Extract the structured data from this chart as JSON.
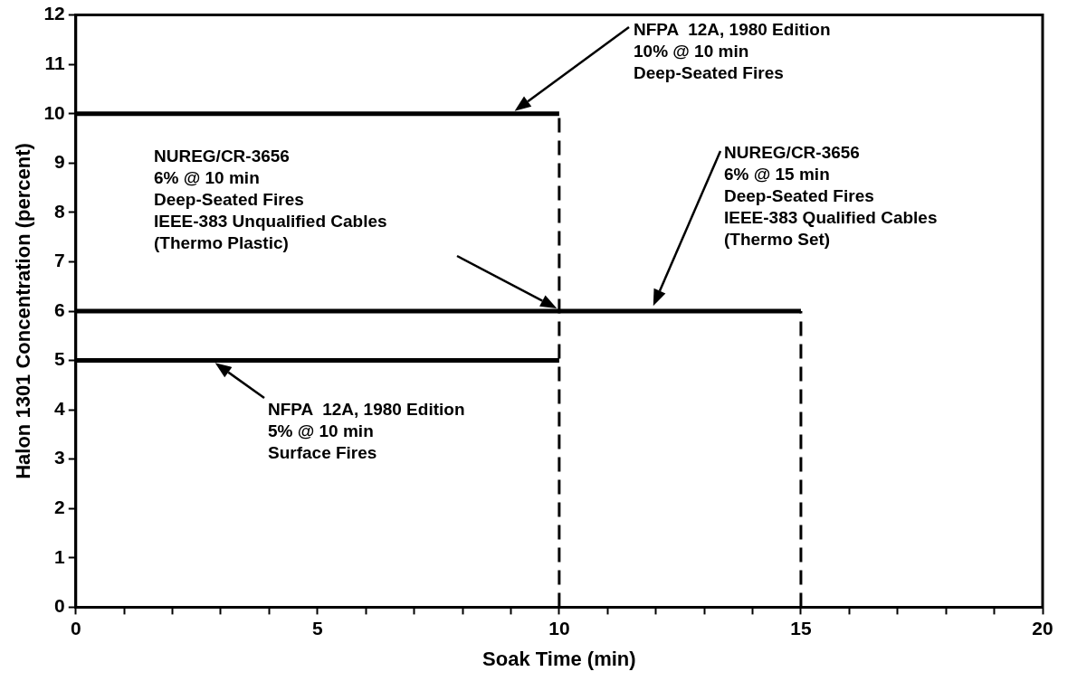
{
  "chart_data": {
    "type": "line",
    "xlabel": "Soak Time (min)",
    "ylabel": "Halon 1301 Concentration (percent)",
    "xlim": [
      0,
      20
    ],
    "ylim": [
      0,
      12
    ],
    "xticks": [
      0,
      {
        "value": 1,
        "label": null
      },
      {
        "value": 2,
        "label": null
      },
      {
        "value": 3,
        "label": null
      },
      {
        "value": 4,
        "label": null
      },
      5,
      {
        "value": 6,
        "label": null
      },
      {
        "value": 7,
        "label": null
      },
      {
        "value": 8,
        "label": null
      },
      {
        "value": 9,
        "label": null
      },
      10,
      {
        "value": 11,
        "label": null
      },
      {
        "value": 12,
        "label": null
      },
      {
        "value": 13,
        "label": null
      },
      {
        "value": 14,
        "label": null
      },
      15,
      {
        "value": 16,
        "label": null
      },
      {
        "value": 17,
        "label": null
      },
      {
        "value": 18,
        "label": null
      },
      {
        "value": 19,
        "label": null
      },
      20
    ],
    "yticks": [
      0,
      1,
      2,
      3,
      4,
      5,
      6,
      7,
      8,
      9,
      10,
      11,
      12
    ],
    "grid": false,
    "legend": false,
    "marker": "none",
    "series": [
      {
        "color": "#000000",
        "x": [
          0,
          10
        ],
        "values": [
          10,
          10
        ],
        "line_style": "solid"
      },
      {
        "color": "#000000",
        "x": [
          0,
          15
        ],
        "values": [
          6,
          6
        ],
        "line_style": "solid"
      },
      {
        "color": "#000000",
        "x": [
          0,
          10
        ],
        "values": [
          5,
          5
        ],
        "line_style": "solid"
      },
      {
        "color": "#000000",
        "x": [
          10,
          10
        ],
        "values": [
          0,
          10
        ],
        "line_style": "dashed"
      },
      {
        "color": "#000000",
        "x": [
          15,
          15
        ],
        "values": [
          0,
          6
        ],
        "line_style": "dashed"
      }
    ],
    "annotations": [
      "NFPA  12A, 1980 Edition\n10% @ 10 min\nDeep-Seated Fires",
      "NUREG/CR-3656\n6% @ 10 min\nDeep-Seated Fires\nIEEE-383 Unqualified Cables\n(Thermo Plastic)",
      "NUREG/CR-3656\n6% @ 15 min\nDeep-Seated Fires\nIEEE-383 Qualified Cables\n(Thermo Set)",
      "NFPA  12A, 1980 Edition\n5% @ 10 min\nSurface Fires"
    ]
  }
}
